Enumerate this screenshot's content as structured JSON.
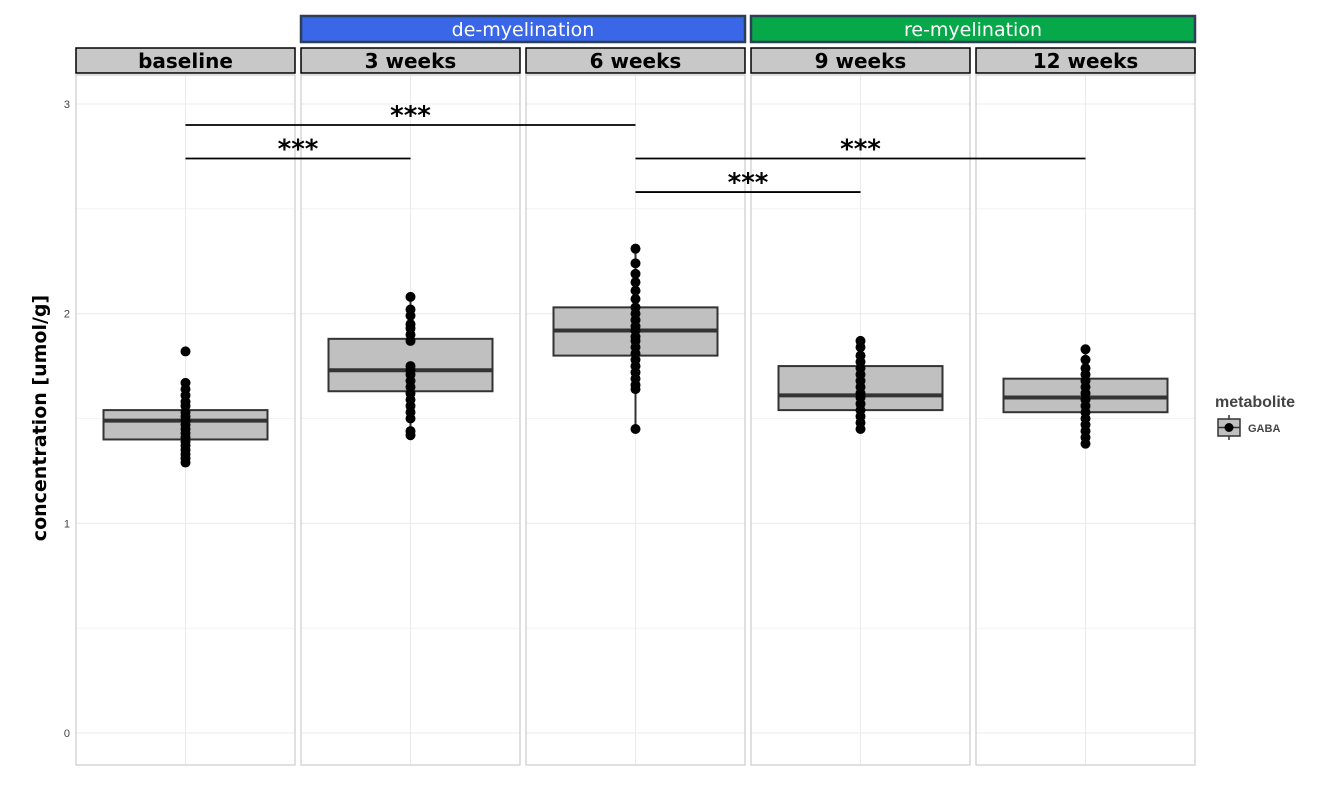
{
  "chart_data": {
    "type": "box",
    "ylabel": "concentration [umol/g]",
    "ylim": [
      -0.15,
      3.1
    ],
    "yticks": [
      "0",
      "1",
      "2",
      "3"
    ],
    "grid": true,
    "phases": [
      {
        "label": "de-myelination",
        "color": "#3a66e8",
        "from_panel": 1,
        "to_panel": 2
      },
      {
        "label": "re-myelination",
        "color": "#07a84a",
        "from_panel": 3,
        "to_panel": 4
      }
    ],
    "panels": [
      {
        "label": "baseline",
        "box": {
          "q1": 1.4,
          "median": 1.49,
          "q3": 1.54,
          "whisker_low": 1.29,
          "whisker_high": 1.66
        },
        "points": [
          1.29,
          1.31,
          1.33,
          1.35,
          1.37,
          1.39,
          1.41,
          1.43,
          1.45,
          1.47,
          1.49,
          1.51,
          1.53,
          1.56,
          1.58,
          1.61,
          1.64,
          1.67,
          1.82
        ]
      },
      {
        "label": "3 weeks",
        "box": {
          "q1": 1.63,
          "median": 1.73,
          "q3": 1.88,
          "whisker_low": 1.42,
          "whisker_high": 2.08
        },
        "points": [
          1.42,
          1.44,
          1.5,
          1.53,
          1.56,
          1.59,
          1.62,
          1.65,
          1.68,
          1.71,
          1.73,
          1.75,
          1.87,
          1.9,
          1.93,
          1.95,
          1.99,
          2.02,
          2.08
        ]
      },
      {
        "label": "6 weeks",
        "box": {
          "q1": 1.8,
          "median": 1.92,
          "q3": 2.03,
          "whisker_low": 1.45,
          "whisker_high": 2.31
        },
        "points": [
          1.45,
          1.64,
          1.66,
          1.69,
          1.72,
          1.75,
          1.78,
          1.81,
          1.84,
          1.87,
          1.89,
          1.92,
          1.94,
          1.97,
          2.0,
          2.03,
          2.07,
          2.11,
          2.15,
          2.19,
          2.24,
          2.31
        ]
      },
      {
        "label": "9 weeks",
        "box": {
          "q1": 1.54,
          "median": 1.61,
          "q3": 1.75,
          "whisker_low": 1.45,
          "whisker_high": 1.87
        },
        "points": [
          1.45,
          1.48,
          1.51,
          1.54,
          1.57,
          1.6,
          1.62,
          1.65,
          1.68,
          1.71,
          1.74,
          1.77,
          1.8,
          1.84,
          1.87
        ]
      },
      {
        "label": "12 weeks",
        "box": {
          "q1": 1.53,
          "median": 1.6,
          "q3": 1.69,
          "whisker_low": 1.38,
          "whisker_high": 1.83
        },
        "points": [
          1.38,
          1.41,
          1.44,
          1.47,
          1.5,
          1.53,
          1.56,
          1.59,
          1.62,
          1.65,
          1.68,
          1.71,
          1.74,
          1.78,
          1.83
        ]
      }
    ],
    "significance": [
      {
        "from_panel": 0,
        "to_panel": 2,
        "y": 2.9,
        "label": "***"
      },
      {
        "from_panel": 0,
        "to_panel": 1,
        "y": 2.74,
        "label": "***"
      },
      {
        "from_panel": 2,
        "to_panel": 4,
        "y": 2.74,
        "label": "***"
      },
      {
        "from_panel": 2,
        "to_panel": 3,
        "y": 2.58,
        "label": "***"
      }
    ],
    "legend": {
      "title": "metabolite",
      "entries": [
        "GABA"
      ],
      "position": "right"
    },
    "colors": {
      "box_fill": "#c0c0c0",
      "box_line": "#333333",
      "point": "#000000",
      "strip_fill": "#c8c8c8",
      "grid": "#ebebeb",
      "panel_border": "#cccccc"
    }
  }
}
